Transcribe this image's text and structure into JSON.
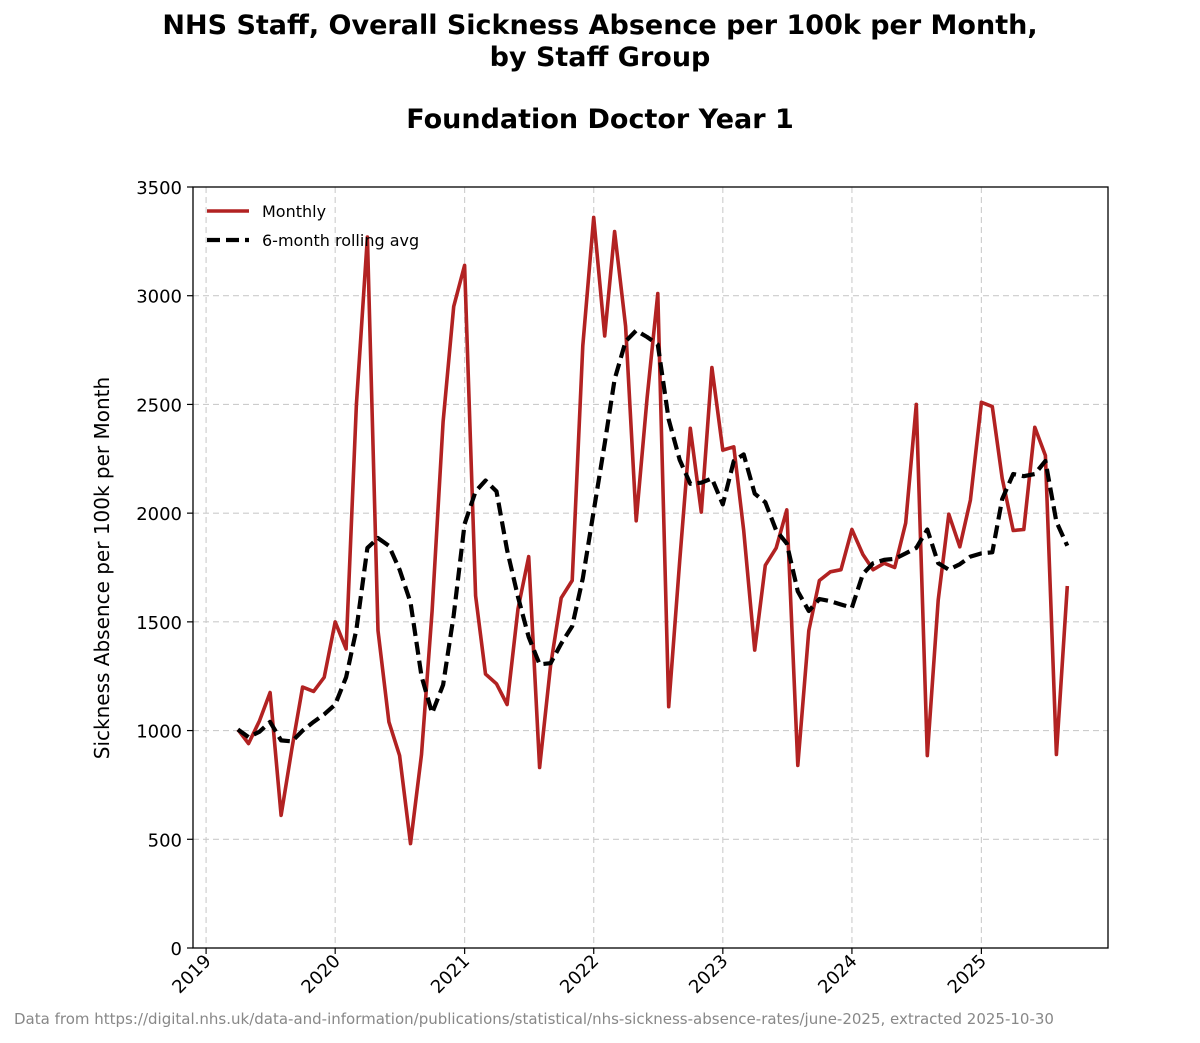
{
  "chart_data": {
    "type": "line",
    "title_lines": [
      "NHS Staff, Overall Sickness Absence per 100k per Month,",
      "by Staff Group"
    ],
    "subtitle": "Foundation Doctor Year 1",
    "xlabel": "",
    "ylabel": "Sickness Absence per 100k per Month",
    "ylim": [
      0,
      3500
    ],
    "yticks": [
      0,
      500,
      1000,
      1500,
      2000,
      2500,
      3000,
      3500
    ],
    "xlim": [
      "2018-11-25",
      "2025-12-25"
    ],
    "xticks": [
      "2019",
      "2020",
      "2021",
      "2022",
      "2023",
      "2024",
      "2025"
    ],
    "grid": true,
    "legend_position": "top-left",
    "series": [
      {
        "name": "Monthly",
        "color": "#b22222",
        "style": "solid",
        "x": [
          "2019-04",
          "2019-05",
          "2019-06",
          "2019-07",
          "2019-08",
          "2019-09",
          "2019-10",
          "2019-11",
          "2019-12",
          "2020-01",
          "2020-02",
          "2020-03",
          "2020-04",
          "2020-05",
          "2020-06",
          "2020-07",
          "2020-08",
          "2020-09",
          "2020-10",
          "2020-11",
          "2020-12",
          "2021-01",
          "2021-02",
          "2021-03",
          "2021-04",
          "2021-05",
          "2021-06",
          "2021-07",
          "2021-08",
          "2021-09",
          "2021-10",
          "2021-11",
          "2021-12",
          "2022-01",
          "2022-02",
          "2022-03",
          "2022-04",
          "2022-05",
          "2022-06",
          "2022-07",
          "2022-08",
          "2022-09",
          "2022-10",
          "2022-11",
          "2022-12",
          "2023-01",
          "2023-02",
          "2023-03",
          "2023-04",
          "2023-05",
          "2023-06",
          "2023-07",
          "2023-08",
          "2023-09",
          "2023-10",
          "2023-11",
          "2023-12",
          "2024-01",
          "2024-02",
          "2024-03",
          "2024-04",
          "2024-05",
          "2024-06",
          "2024-07",
          "2024-08",
          "2024-09",
          "2024-10",
          "2024-11",
          "2024-12",
          "2025-01",
          "2025-02",
          "2025-03",
          "2025-04",
          "2025-05",
          "2025-06",
          "2025-07",
          "2025-08",
          "2025-09"
        ],
        "values": [
          1005,
          940,
          1045,
          1175,
          610,
          920,
          1200,
          1180,
          1245,
          1500,
          1375,
          2500,
          3270,
          1460,
          1040,
          885,
          480,
          890,
          1550,
          2420,
          2950,
          3140,
          1620,
          1260,
          1215,
          1120,
          1560,
          1800,
          830,
          1300,
          1610,
          1690,
          2770,
          3360,
          2815,
          3295,
          2860,
          1965,
          2530,
          3010,
          1110,
          1780,
          2390,
          2005,
          2670,
          2290,
          2305,
          1920,
          1370,
          1760,
          1840,
          2015,
          840,
          1460,
          1690,
          1730,
          1740,
          1925,
          1810,
          1740,
          1770,
          1750,
          1955,
          2500,
          885,
          1600,
          1995,
          1845,
          2060,
          2510,
          2490,
          2160,
          1920,
          1925,
          2395,
          2265,
          890,
          1665
        ]
      },
      {
        "name": "6-month rolling avg",
        "color": "#000000",
        "style": "dashed",
        "x": [
          "2019-04",
          "2019-05",
          "2019-06",
          "2019-07",
          "2019-08",
          "2019-09",
          "2019-10",
          "2019-11",
          "2019-12",
          "2020-01",
          "2020-02",
          "2020-03",
          "2020-04",
          "2020-05",
          "2020-06",
          "2020-07",
          "2020-08",
          "2020-09",
          "2020-10",
          "2020-11",
          "2020-12",
          "2021-01",
          "2021-02",
          "2021-03",
          "2021-04",
          "2021-05",
          "2021-06",
          "2021-07",
          "2021-08",
          "2021-09",
          "2021-10",
          "2021-11",
          "2021-12",
          "2022-01",
          "2022-02",
          "2022-03",
          "2022-04",
          "2022-05",
          "2022-06",
          "2022-07",
          "2022-08",
          "2022-09",
          "2022-10",
          "2022-11",
          "2022-12",
          "2023-01",
          "2023-02",
          "2023-03",
          "2023-04",
          "2023-05",
          "2023-06",
          "2023-07",
          "2023-08",
          "2023-09",
          "2023-10",
          "2023-11",
          "2023-12",
          "2024-01",
          "2024-02",
          "2024-03",
          "2024-04",
          "2024-05",
          "2024-06",
          "2024-07",
          "2024-08",
          "2024-09",
          "2024-10",
          "2024-11",
          "2024-12",
          "2025-01",
          "2025-02",
          "2025-03",
          "2025-04",
          "2025-05",
          "2025-06",
          "2025-07",
          "2025-08",
          "2025-09"
        ],
        "values": [
          1005,
          970,
          995,
          1040,
          955,
          950,
          1000,
          1040,
          1075,
          1120,
          1245,
          1465,
          1840,
          1885,
          1850,
          1740,
          1590,
          1250,
          1080,
          1210,
          1530,
          1950,
          2100,
          2150,
          2100,
          1830,
          1615,
          1430,
          1305,
          1310,
          1400,
          1480,
          1700,
          2010,
          2320,
          2615,
          2790,
          2840,
          2810,
          2775,
          2430,
          2245,
          2135,
          2140,
          2160,
          2040,
          2240,
          2270,
          2090,
          2050,
          1920,
          1860,
          1640,
          1550,
          1605,
          1595,
          1580,
          1565,
          1720,
          1770,
          1785,
          1790,
          1815,
          1840,
          1925,
          1770,
          1740,
          1765,
          1800,
          1815,
          1820,
          2065,
          2180,
          2170,
          2180,
          2240,
          1960,
          1850
        ]
      }
    ]
  },
  "footer": {
    "source_text": "Data from https://digital.nhs.uk/data-and-information/publications/statistical/nhs-sickness-absence-rates/june-2025, extracted 2025-10-30"
  }
}
